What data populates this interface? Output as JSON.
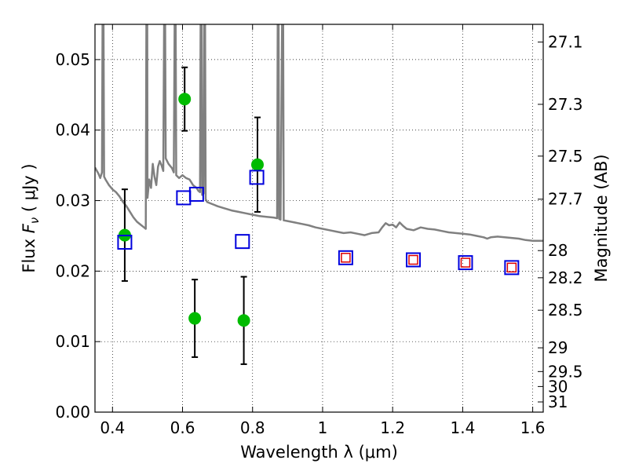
{
  "chart_data": {
    "type": "scatter",
    "xlabel": "Wavelength  λ (μm)",
    "ylabel_left": {
      "prefix": "Flux  ",
      "symbol": "F",
      "subscript": "ν",
      "suffix": "  ( μJy )"
    },
    "ylabel_right": "Magnitude (AB)",
    "xlim": [
      0.35,
      1.63
    ],
    "ylim": [
      0.0,
      0.055
    ],
    "grid": true,
    "x_ticks": [
      0.4,
      0.6,
      0.8,
      1.0,
      1.2,
      1.4,
      1.6
    ],
    "x_tick_labels": [
      "0.4",
      "0.6",
      "0.8",
      "1",
      "1.2",
      "1.4",
      "1.6"
    ],
    "y_ticks": [
      0.0,
      0.01,
      0.02,
      0.03,
      0.04,
      0.05
    ],
    "y_tick_labels": [
      "0.00",
      "0.01",
      "0.02",
      "0.03",
      "0.04",
      "0.05"
    ],
    "right_ticks": [
      {
        "mag": 27.1,
        "label": "27.1"
      },
      {
        "mag": 27.3,
        "label": "27.3"
      },
      {
        "mag": 27.5,
        "label": "27.5"
      },
      {
        "mag": 27.7,
        "label": "27.7"
      },
      {
        "mag": 28.0,
        "label": "28"
      },
      {
        "mag": 28.2,
        "label": "28.2"
      },
      {
        "mag": 28.5,
        "label": "28.5"
      },
      {
        "mag": 29.0,
        "label": "29"
      },
      {
        "mag": 29.5,
        "label": "29.5"
      },
      {
        "mag": 30.0,
        "label": "30"
      },
      {
        "mag": 31.0,
        "label": "31"
      }
    ],
    "series": [
      {
        "role": "model_spectrum",
        "style": "line",
        "color": "#808080",
        "points": [
          [
            0.35,
            0.0347
          ],
          [
            0.36,
            0.0338
          ],
          [
            0.365,
            0.0332
          ],
          [
            0.37,
            0.034
          ],
          [
            0.372,
            0.06
          ],
          [
            0.374,
            0.06
          ],
          [
            0.376,
            0.0334
          ],
          [
            0.38,
            0.033
          ],
          [
            0.39,
            0.0322
          ],
          [
            0.4,
            0.0316
          ],
          [
            0.41,
            0.0312
          ],
          [
            0.42,
            0.0306
          ],
          [
            0.43,
            0.0298
          ],
          [
            0.44,
            0.0292
          ],
          [
            0.45,
            0.0284
          ],
          [
            0.46,
            0.0276
          ],
          [
            0.47,
            0.027
          ],
          [
            0.48,
            0.0266
          ],
          [
            0.49,
            0.0262
          ],
          [
            0.495,
            0.026
          ],
          [
            0.497,
            0.06
          ],
          [
            0.499,
            0.06
          ],
          [
            0.5,
            0.0304
          ],
          [
            0.505,
            0.033
          ],
          [
            0.51,
            0.0318
          ],
          [
            0.515,
            0.0352
          ],
          [
            0.52,
            0.0334
          ],
          [
            0.525,
            0.0322
          ],
          [
            0.53,
            0.0348
          ],
          [
            0.535,
            0.0356
          ],
          [
            0.54,
            0.035
          ],
          [
            0.545,
            0.0342
          ],
          [
            0.548,
            0.06
          ],
          [
            0.55,
            0.06
          ],
          [
            0.552,
            0.036
          ],
          [
            0.56,
            0.0352
          ],
          [
            0.57,
            0.0346
          ],
          [
            0.575,
            0.034
          ],
          [
            0.578,
            0.06
          ],
          [
            0.58,
            0.06
          ],
          [
            0.582,
            0.0336
          ],
          [
            0.59,
            0.0332
          ],
          [
            0.6,
            0.0336
          ],
          [
            0.61,
            0.0332
          ],
          [
            0.62,
            0.033
          ],
          [
            0.625,
            0.0326
          ],
          [
            0.63,
            0.0322
          ],
          [
            0.64,
            0.0318
          ],
          [
            0.645,
            0.0314
          ],
          [
            0.65,
            0.0312
          ],
          [
            0.652,
            0.06
          ],
          [
            0.654,
            0.06
          ],
          [
            0.656,
            0.0308
          ],
          [
            0.66,
            0.031
          ],
          [
            0.662,
            0.06
          ],
          [
            0.664,
            0.06
          ],
          [
            0.666,
            0.0302
          ],
          [
            0.67,
            0.0298
          ],
          [
            0.68,
            0.0296
          ],
          [
            0.69,
            0.0294
          ],
          [
            0.7,
            0.0292
          ],
          [
            0.72,
            0.0289
          ],
          [
            0.74,
            0.0286
          ],
          [
            0.76,
            0.0284
          ],
          [
            0.78,
            0.0282
          ],
          [
            0.8,
            0.028
          ],
          [
            0.82,
            0.0278
          ],
          [
            0.84,
            0.0277
          ],
          [
            0.86,
            0.0276
          ],
          [
            0.87,
            0.0275
          ],
          [
            0.872,
            0.06
          ],
          [
            0.874,
            0.06
          ],
          [
            0.876,
            0.0274
          ],
          [
            0.88,
            0.0273
          ],
          [
            0.885,
            0.06
          ],
          [
            0.887,
            0.06
          ],
          [
            0.889,
            0.0272
          ],
          [
            0.9,
            0.0271
          ],
          [
            0.92,
            0.0269
          ],
          [
            0.94,
            0.0267
          ],
          [
            0.96,
            0.0265
          ],
          [
            0.98,
            0.0262
          ],
          [
            1.0,
            0.026
          ],
          [
            1.02,
            0.0258
          ],
          [
            1.04,
            0.0256
          ],
          [
            1.06,
            0.0254
          ],
          [
            1.08,
            0.0255
          ],
          [
            1.1,
            0.0253
          ],
          [
            1.12,
            0.0251
          ],
          [
            1.14,
            0.0254
          ],
          [
            1.16,
            0.0255
          ],
          [
            1.17,
            0.0262
          ],
          [
            1.18,
            0.0268
          ],
          [
            1.19,
            0.0265
          ],
          [
            1.2,
            0.0266
          ],
          [
            1.21,
            0.0262
          ],
          [
            1.22,
            0.0269
          ],
          [
            1.23,
            0.0264
          ],
          [
            1.24,
            0.026
          ],
          [
            1.26,
            0.0258
          ],
          [
            1.28,
            0.0262
          ],
          [
            1.3,
            0.026
          ],
          [
            1.32,
            0.0259
          ],
          [
            1.34,
            0.0257
          ],
          [
            1.36,
            0.0255
          ],
          [
            1.38,
            0.0254
          ],
          [
            1.4,
            0.0253
          ],
          [
            1.42,
            0.0252
          ],
          [
            1.44,
            0.025
          ],
          [
            1.46,
            0.0248
          ],
          [
            1.47,
            0.0246
          ],
          [
            1.48,
            0.0248
          ],
          [
            1.5,
            0.0249
          ],
          [
            1.52,
            0.0248
          ],
          [
            1.54,
            0.0247
          ],
          [
            1.56,
            0.0246
          ],
          [
            1.58,
            0.0244
          ],
          [
            1.6,
            0.0243
          ],
          [
            1.62,
            0.0243
          ],
          [
            1.63,
            0.0243
          ]
        ]
      },
      {
        "role": "observed",
        "style": "points_with_error",
        "color": "#00bb00",
        "points": [
          {
            "x": 0.435,
            "y": 0.0251,
            "err": 0.0065
          },
          {
            "x": 0.606,
            "y": 0.0444,
            "err": 0.0045
          },
          {
            "x": 0.635,
            "y": 0.0133,
            "err": 0.0055
          },
          {
            "x": 0.775,
            "y": 0.013,
            "err": 0.0062
          },
          {
            "x": 0.814,
            "y": 0.0351,
            "err": 0.0067
          }
        ]
      },
      {
        "role": "model_broadband",
        "style": "open_square",
        "color": "#0000dd",
        "points": [
          {
            "x": 0.435,
            "y": 0.0241
          },
          {
            "x": 0.603,
            "y": 0.0304
          },
          {
            "x": 0.64,
            "y": 0.0309
          },
          {
            "x": 0.771,
            "y": 0.0242
          },
          {
            "x": 0.812,
            "y": 0.0333
          },
          {
            "x": 1.066,
            "y": 0.0219
          },
          {
            "x": 1.259,
            "y": 0.0216
          },
          {
            "x": 1.408,
            "y": 0.0212
          },
          {
            "x": 1.54,
            "y": 0.0205
          }
        ]
      },
      {
        "role": "model_broadband_inner",
        "style": "open_square_small",
        "color": "#dd0000",
        "points": [
          {
            "x": 1.066,
            "y": 0.0219
          },
          {
            "x": 1.259,
            "y": 0.0216
          },
          {
            "x": 1.408,
            "y": 0.0212
          },
          {
            "x": 1.54,
            "y": 0.0205
          }
        ]
      }
    ]
  }
}
